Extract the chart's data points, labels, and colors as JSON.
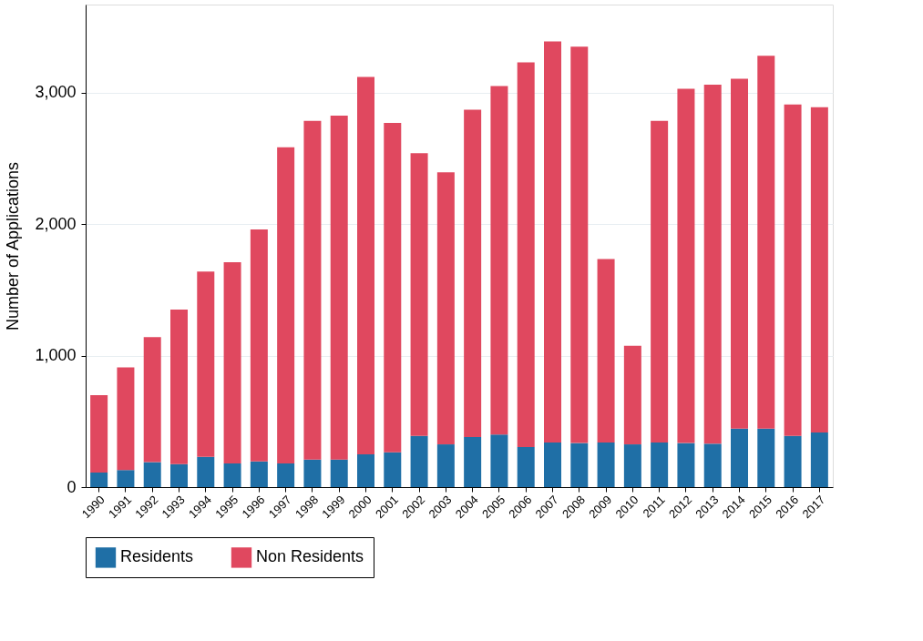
{
  "chart_data": {
    "type": "bar",
    "stacked": true,
    "ylabel": "Number of Applications",
    "categories": [
      "1990",
      "1991",
      "1992",
      "1993",
      "1994",
      "1995",
      "1996",
      "1997",
      "1998",
      "1999",
      "2000",
      "2001",
      "2002",
      "2003",
      "2004",
      "2005",
      "2006",
      "2007",
      "2008",
      "2009",
      "2010",
      "2011",
      "2012",
      "2013",
      "2014",
      "2015",
      "2016",
      "2017"
    ],
    "series": [
      {
        "name": "Residents",
        "color": "#1f6fa6",
        "values": [
          110,
          130,
          190,
          175,
          230,
          180,
          195,
          180,
          210,
          210,
          250,
          265,
          390,
          325,
          380,
          400,
          305,
          340,
          335,
          340,
          325,
          340,
          335,
          330,
          445,
          445,
          390,
          415
        ]
      },
      {
        "name": "Non Residents",
        "color": "#e0485f",
        "values": [
          590,
          780,
          950,
          1175,
          1410,
          1530,
          1765,
          2405,
          2575,
          2615,
          2870,
          2505,
          2150,
          2070,
          2490,
          2650,
          2925,
          3050,
          3015,
          1395,
          750,
          2445,
          2695,
          2730,
          2660,
          2835,
          2520,
          2475
        ]
      }
    ],
    "ylim": [
      0,
      3670
    ],
    "yticks": [
      {
        "value": 0,
        "label": "0"
      },
      {
        "value": 1000,
        "label": "1,000"
      },
      {
        "value": 2000,
        "label": "2,000"
      },
      {
        "value": 3000,
        "label": "3,000"
      }
    ],
    "grid": "y",
    "legend": "bottom"
  }
}
